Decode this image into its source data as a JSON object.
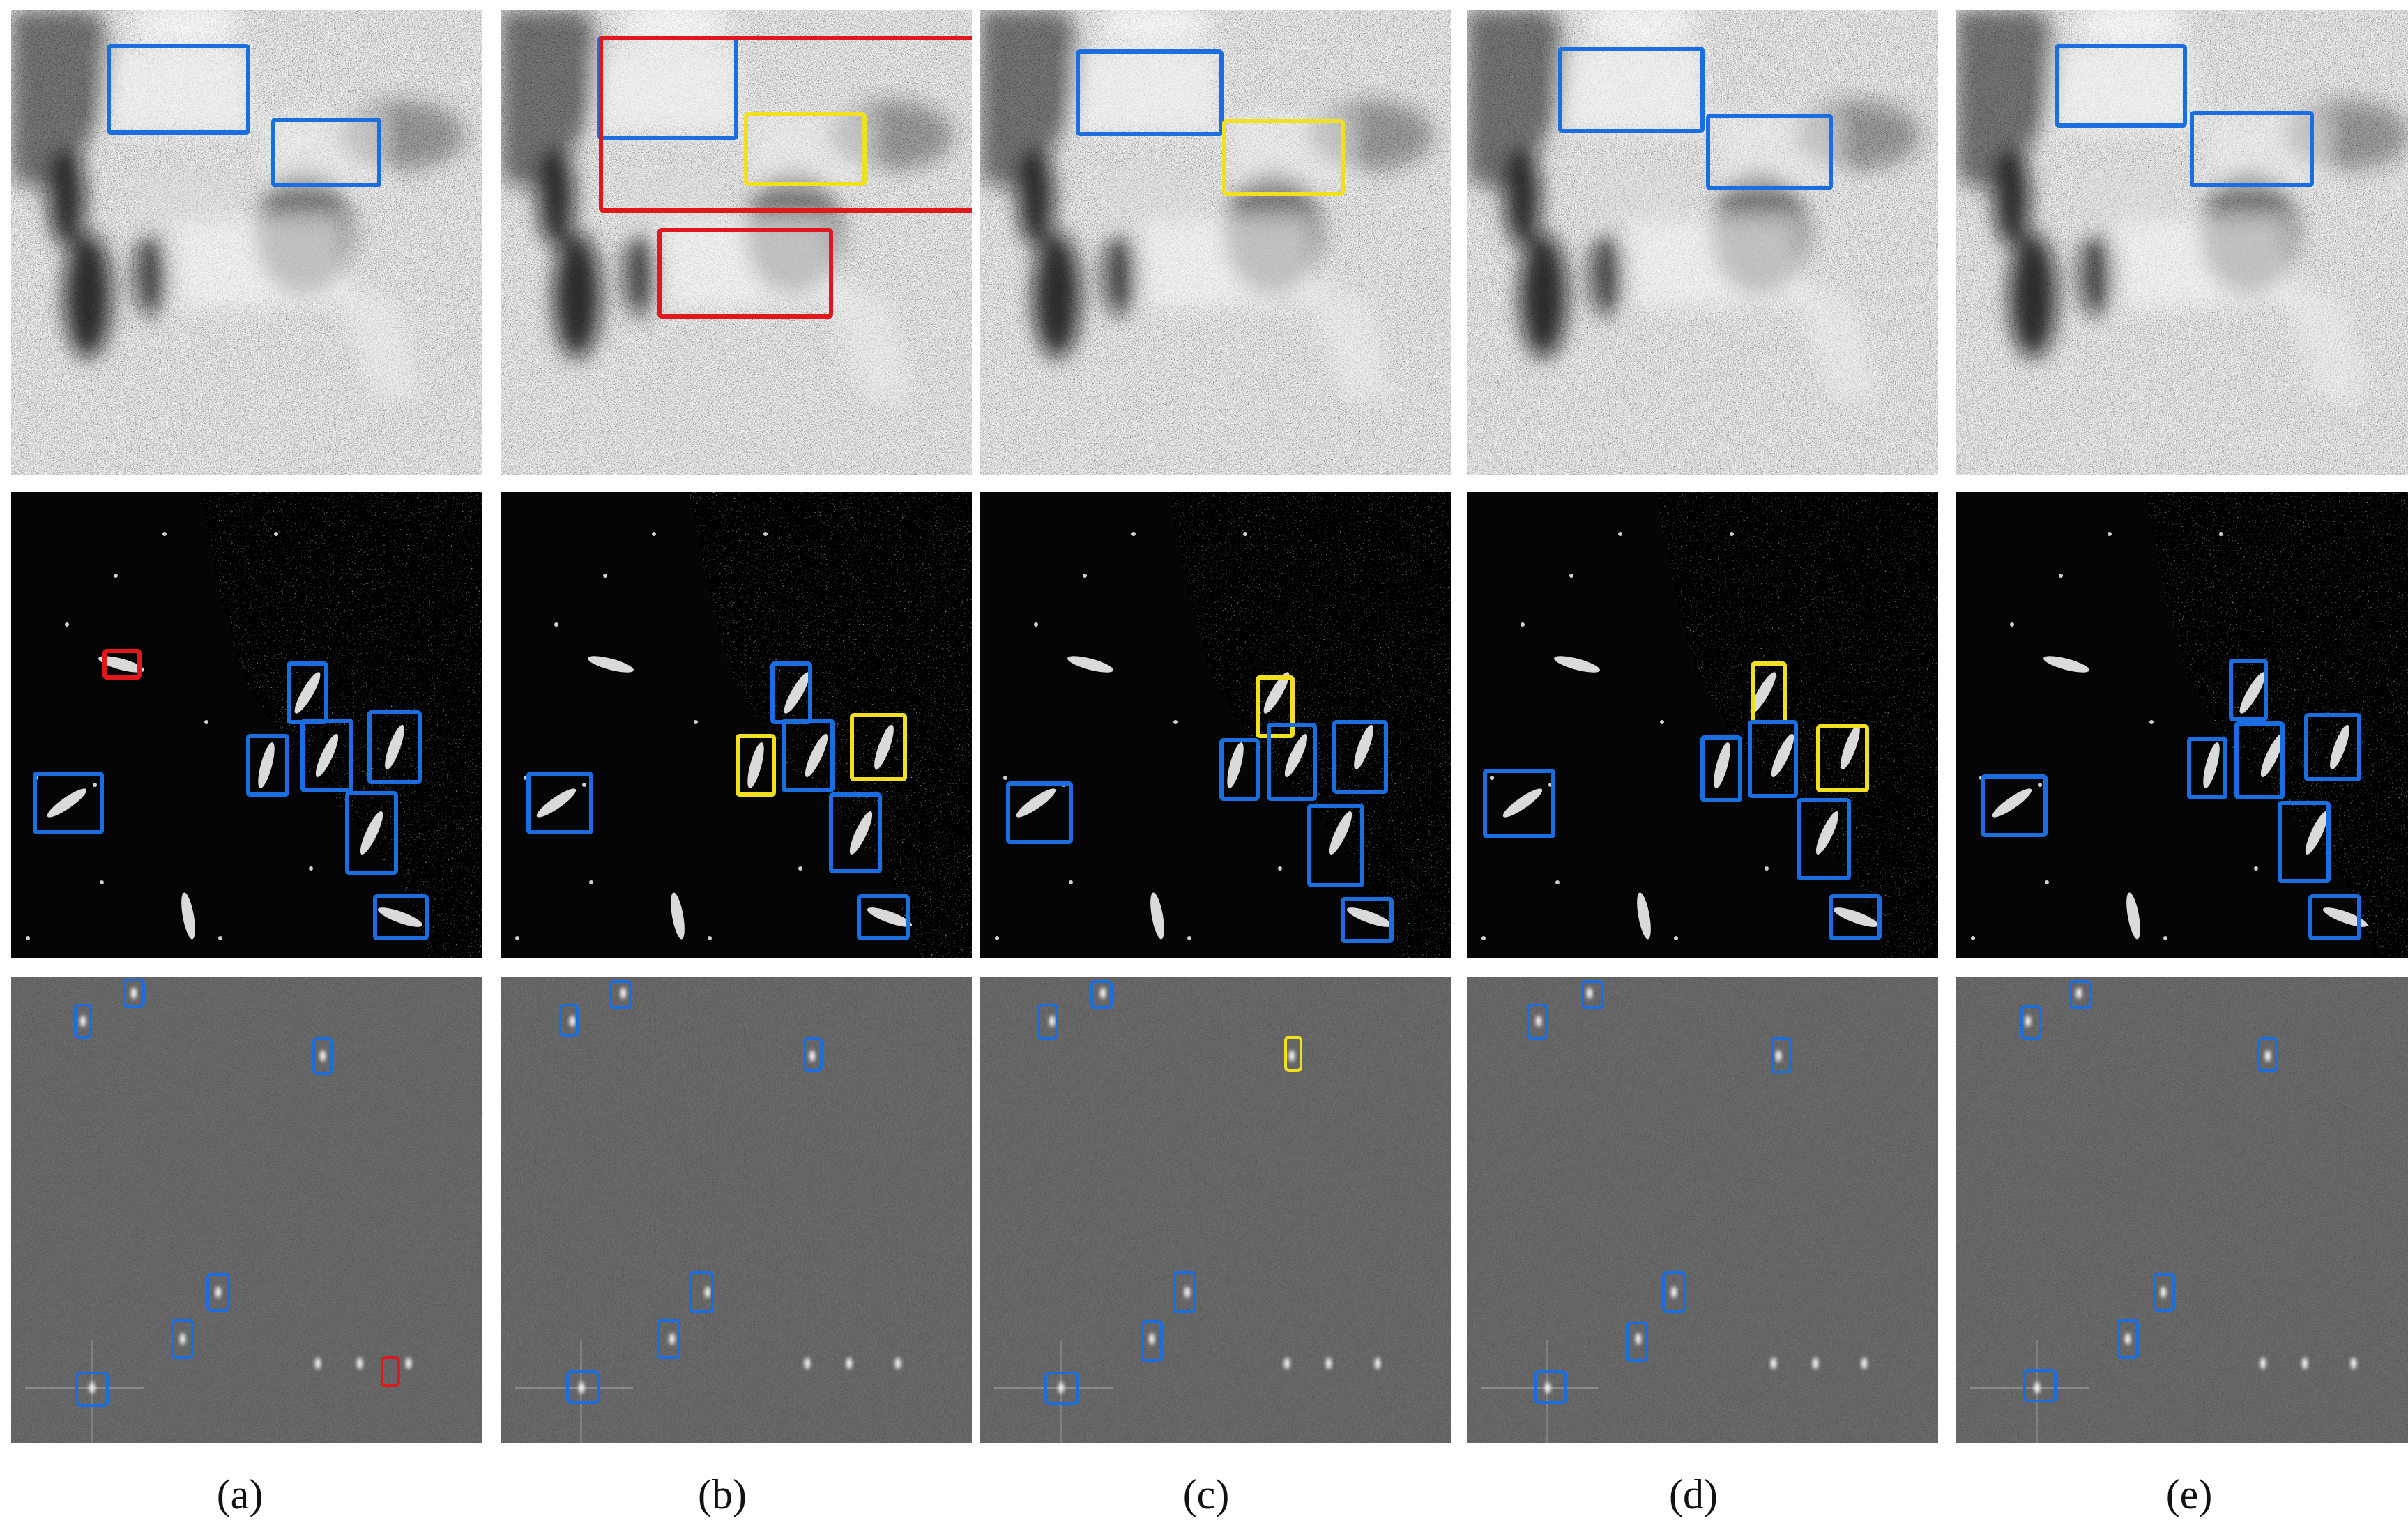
{
  "captions": [
    "(a)",
    "(b)",
    "(c)",
    "(d)",
    "(e)"
  ],
  "colors": {
    "correct_box": "#1a6ee0",
    "false_alarm_box": "#e0181c",
    "missed_box": "#f0e020",
    "row1_background": "#8a8a8a",
    "row2_background": "#050505",
    "row3_background": "#2e2e2e"
  },
  "rows": [
    "harbor-scene",
    "port-ships-scene",
    "offshore-ships-scene"
  ]
}
